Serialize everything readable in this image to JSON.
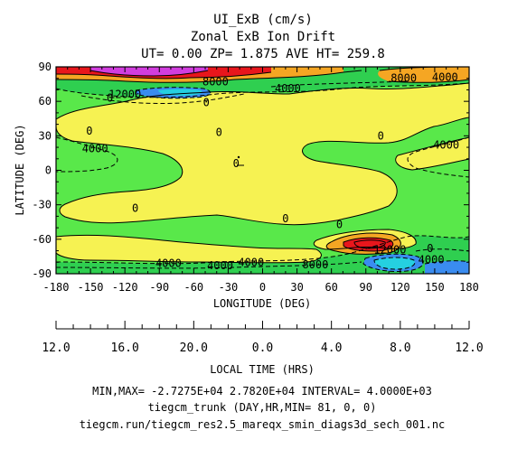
{
  "chart_data": {
    "type": "contour",
    "title_lines": [
      "UI_ExB (cm/s)",
      "Zonal ExB Ion Drift",
      "UT= 0.00 ZP=  1.875 AVE HT= 259.8"
    ],
    "xlabel": "LONGITUDE (DEG)",
    "ylabel": "LATITUDE (DEG)",
    "xlim": [
      -180,
      180
    ],
    "ylim": [
      -90,
      90
    ],
    "xticks": [
      -180,
      -150,
      -120,
      -90,
      -60,
      -30,
      0,
      30,
      60,
      90,
      120,
      150,
      180
    ],
    "yticks": [
      -90,
      -60,
      -30,
      0,
      30,
      60,
      90
    ],
    "local_time": {
      "label": "LOCAL TIME (HRS)",
      "tick_labels": [
        "12.0",
        "16.0",
        "20.0",
        "0.0",
        "4.0",
        "8.0",
        "12.0"
      ]
    },
    "contour_labels": [
      {
        "text": "0",
        "lon": -133,
        "lat": 63
      },
      {
        "text": "0",
        "lon": -49,
        "lat": 59
      },
      {
        "text": "0",
        "lon": -151,
        "lat": 34
      },
      {
        "text": "0",
        "lon": -38,
        "lat": 33
      },
      {
        "text": "0",
        "lon": -23,
        "lat": 6
      },
      {
        "text": "0",
        "lon": 103,
        "lat": 30
      },
      {
        "text": "0",
        "lon": -111,
        "lat": -33
      },
      {
        "text": "0",
        "lon": 20,
        "lat": -42
      },
      {
        "text": "0",
        "lon": 67,
        "lat": -47
      },
      {
        "text": "0",
        "lon": 146,
        "lat": -68
      },
      {
        "text": "4000",
        "lon": 22,
        "lat": 71
      },
      {
        "text": "8000",
        "lon": 123,
        "lat": 80
      },
      {
        "text": "4000",
        "lon": 159,
        "lat": 81
      },
      {
        "text": "8000",
        "lon": -41,
        "lat": 77
      },
      {
        "text": "12000",
        "lon": -120,
        "lat": 66
      },
      {
        "text": "4000",
        "lon": -146,
        "lat": 19
      },
      {
        "text": "4000",
        "lon": 160,
        "lat": 22
      },
      {
        "text": "4000",
        "lon": -82,
        "lat": -81
      },
      {
        "text": "4000",
        "lon": -37,
        "lat": -83
      },
      {
        "text": "4000",
        "lon": -10,
        "lat": -80
      },
      {
        "text": "8000",
        "lon": 46,
        "lat": -82
      },
      {
        "text": "12000",
        "lon": 111,
        "lat": -69
      },
      {
        "text": "4000",
        "lon": 147,
        "lat": -78
      }
    ],
    "colorbar": "none",
    "grid": false
  },
  "footer": {
    "stats": "MIN,MAX= -2.7275E+04  2.7820E+04 INTERVAL=  4.0000E+03",
    "model": "tiegcm_trunk (DAY,HR,MIN= 81, 0, 0)",
    "file": "tiegcm.run/tiegcm_res2.5_mareqx_smin_diags3d_sech_001.nc"
  }
}
